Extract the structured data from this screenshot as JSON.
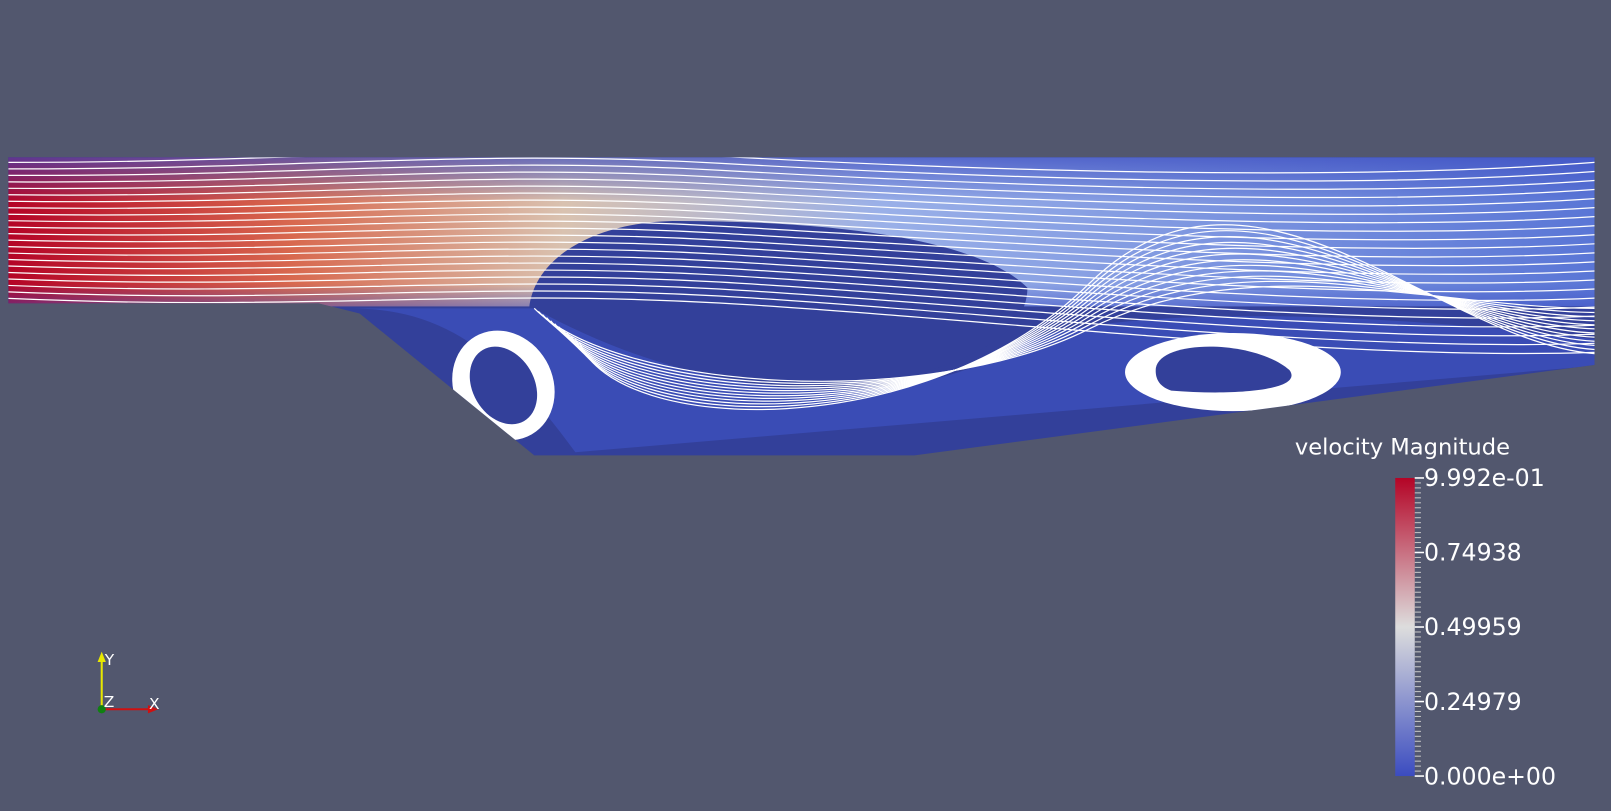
{
  "colorbar": {
    "title": "velocity Magnitude",
    "ticks": [
      {
        "value": 0.9992,
        "label": "9.992e-01"
      },
      0.74938,
      0.49959,
      0.24979,
      {
        "value": 0,
        "label": "0.000e+00"
      }
    ],
    "colormap": [
      "#3b4cc0",
      "#dddddd",
      "#b40426"
    ]
  },
  "axes": {
    "y": "Y",
    "z": "Z",
    "x": "X"
  }
}
